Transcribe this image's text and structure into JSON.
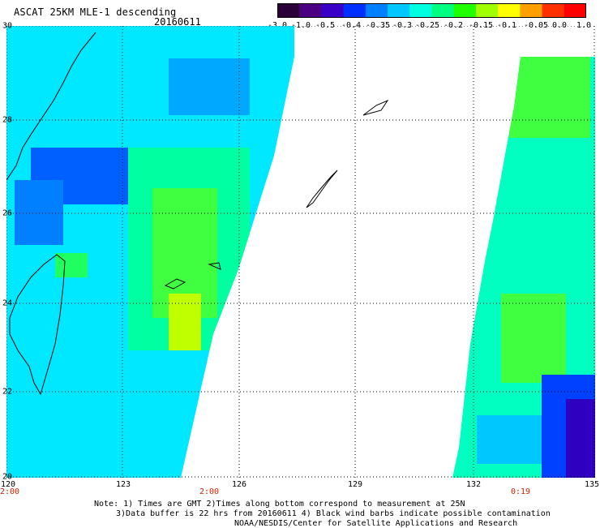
{
  "header": {
    "title": "ASCAT 25KM MLE-1 descending",
    "date": "20160611"
  },
  "colorbar": {
    "colors": [
      "#2a0038",
      "#4b0082",
      "#3b00c8",
      "#0030ff",
      "#0080ff",
      "#00c8ff",
      "#00ffe0",
      "#00ff80",
      "#20ff00",
      "#a0ff00",
      "#ffff00",
      "#ffa000",
      "#ff3000",
      "#ff0000"
    ],
    "labels": [
      "-3.0",
      "-1.0",
      "-0.5",
      "-0.4",
      "-0.35",
      "-0.3",
      "-0.25",
      "-0.2",
      "-0.15",
      "-0.1",
      "-0.05",
      "0.0",
      "1.0"
    ]
  },
  "map": {
    "lat_labels": [
      "30",
      "28",
      "26",
      "24",
      "22",
      "20"
    ],
    "lon_labels": [
      "120",
      "123",
      "126",
      "129",
      "132",
      "135"
    ],
    "time_labels": [
      "2:00",
      "2:00",
      "0:19"
    ],
    "colors": {
      "land": "#ffffff",
      "coast": "#000000",
      "grid": "#000000",
      "no_data": "#ffffff"
    }
  },
  "notes": {
    "line1": "Note: 1) Times are GMT 2)Times along bottom correspond to measurement at 25N",
    "line2": "3)Data buffer is 22 hrs from 20160611 4) Black wind barbs indicate possible contamination",
    "line3": "NOAA/NESDIS/Center for Satellite Applications and Research"
  }
}
